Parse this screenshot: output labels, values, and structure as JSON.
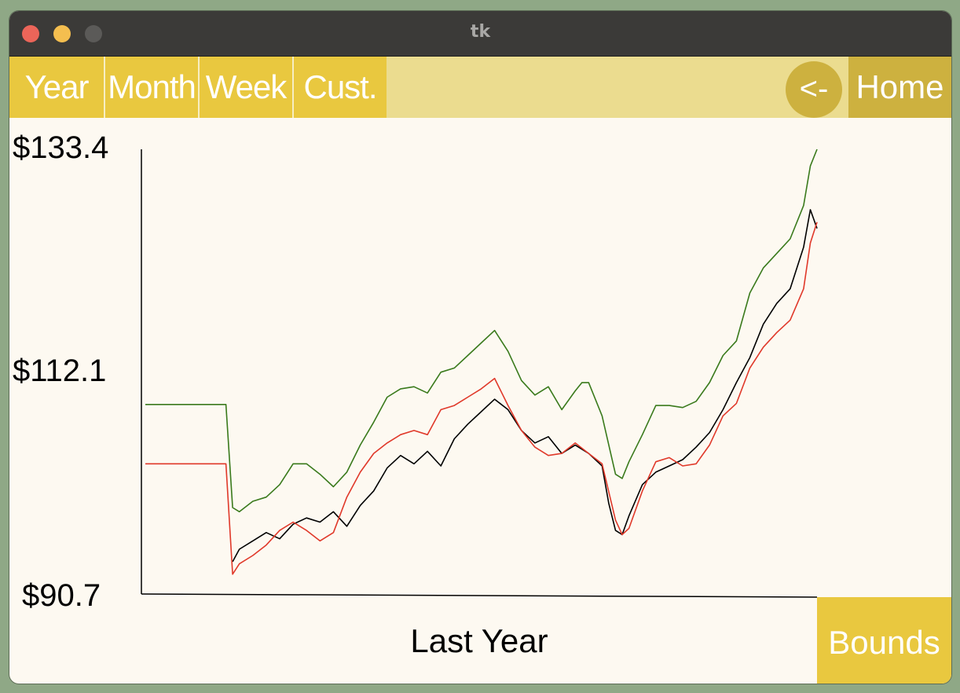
{
  "window": {
    "title": "tk"
  },
  "toolbar": {
    "buttons": [
      "Year",
      "Month",
      "Week",
      "Cust."
    ],
    "back_label": "<-",
    "home_label": "Home"
  },
  "footer": {
    "bounds_label": "Bounds"
  },
  "colors": {
    "accent": "#e9c83f",
    "accent_dark": "#cdb13f",
    "toolbar_bg": "#ebdc8f",
    "background": "#fdf9f1",
    "price_line": "#000000",
    "upper_bound": "#3a7a1c",
    "lower_bound": "#e0392a"
  },
  "chart_data": {
    "type": "line",
    "title": "",
    "xlabel": "Last Year",
    "ylabel": "",
    "ylim": [
      90.7,
      133.4
    ],
    "y_tick_labels": [
      "$133.4",
      "$112.1",
      "$90.7"
    ],
    "grid": false,
    "legend": "none",
    "series": [
      {
        "color": "#000000",
        "points": [
          [
            0.13,
            93.8
          ],
          [
            0.14,
            95.0
          ],
          [
            0.16,
            95.8
          ],
          [
            0.18,
            96.6
          ],
          [
            0.2,
            96.0
          ],
          [
            0.22,
            97.4
          ],
          [
            0.24,
            98.0
          ],
          [
            0.26,
            97.6
          ],
          [
            0.28,
            98.6
          ],
          [
            0.3,
            97.2
          ],
          [
            0.32,
            99.2
          ],
          [
            0.34,
            100.6
          ],
          [
            0.36,
            102.8
          ],
          [
            0.38,
            104.0
          ],
          [
            0.4,
            103.2
          ],
          [
            0.42,
            104.4
          ],
          [
            0.44,
            103.0
          ],
          [
            0.46,
            105.6
          ],
          [
            0.48,
            107.0
          ],
          [
            0.5,
            108.2
          ],
          [
            0.52,
            109.4
          ],
          [
            0.54,
            108.4
          ],
          [
            0.56,
            106.4
          ],
          [
            0.58,
            105.2
          ],
          [
            0.6,
            105.8
          ],
          [
            0.62,
            104.2
          ],
          [
            0.64,
            105.0
          ],
          [
            0.66,
            104.2
          ],
          [
            0.68,
            103.0
          ],
          [
            0.69,
            99.4
          ],
          [
            0.7,
            96.8
          ],
          [
            0.71,
            96.4
          ],
          [
            0.72,
            98.2
          ],
          [
            0.74,
            101.2
          ],
          [
            0.76,
            102.4
          ],
          [
            0.78,
            103.0
          ],
          [
            0.8,
            103.6
          ],
          [
            0.82,
            104.8
          ],
          [
            0.84,
            106.2
          ],
          [
            0.86,
            108.4
          ],
          [
            0.88,
            111.0
          ],
          [
            0.9,
            113.4
          ],
          [
            0.92,
            116.6
          ],
          [
            0.94,
            118.6
          ],
          [
            0.96,
            120.0
          ],
          [
            0.98,
            124.0
          ],
          [
            0.99,
            127.6
          ],
          [
            1.0,
            125.8
          ]
        ]
      },
      {
        "color": "#3a7a1c",
        "points": [
          [
            0.0,
            108.9
          ],
          [
            0.12,
            108.9
          ],
          [
            0.13,
            99.0
          ],
          [
            0.14,
            98.6
          ],
          [
            0.16,
            99.6
          ],
          [
            0.18,
            100.0
          ],
          [
            0.2,
            101.2
          ],
          [
            0.22,
            103.2
          ],
          [
            0.24,
            103.2
          ],
          [
            0.26,
            102.2
          ],
          [
            0.28,
            101.0
          ],
          [
            0.3,
            102.4
          ],
          [
            0.32,
            105.0
          ],
          [
            0.34,
            107.2
          ],
          [
            0.36,
            109.6
          ],
          [
            0.38,
            110.4
          ],
          [
            0.4,
            110.6
          ],
          [
            0.42,
            110.0
          ],
          [
            0.44,
            112.0
          ],
          [
            0.46,
            112.4
          ],
          [
            0.48,
            113.6
          ],
          [
            0.5,
            114.8
          ],
          [
            0.52,
            116.0
          ],
          [
            0.54,
            114.0
          ],
          [
            0.56,
            111.2
          ],
          [
            0.58,
            109.8
          ],
          [
            0.6,
            110.6
          ],
          [
            0.62,
            108.4
          ],
          [
            0.64,
            110.2
          ],
          [
            0.65,
            111.0
          ],
          [
            0.66,
            111.0
          ],
          [
            0.68,
            107.8
          ],
          [
            0.7,
            102.2
          ],
          [
            0.71,
            101.8
          ],
          [
            0.72,
            103.4
          ],
          [
            0.74,
            106.0
          ],
          [
            0.76,
            108.8
          ],
          [
            0.78,
            108.8
          ],
          [
            0.8,
            108.6
          ],
          [
            0.82,
            109.2
          ],
          [
            0.84,
            111.0
          ],
          [
            0.86,
            113.6
          ],
          [
            0.88,
            115.0
          ],
          [
            0.9,
            119.6
          ],
          [
            0.92,
            122.0
          ],
          [
            0.94,
            123.4
          ],
          [
            0.96,
            124.8
          ],
          [
            0.98,
            128.0
          ],
          [
            0.99,
            131.8
          ],
          [
            1.0,
            133.4
          ]
        ]
      },
      {
        "color": "#e0392a",
        "points": [
          [
            0.0,
            103.2
          ],
          [
            0.12,
            103.2
          ],
          [
            0.13,
            92.6
          ],
          [
            0.14,
            93.6
          ],
          [
            0.16,
            94.4
          ],
          [
            0.18,
            95.4
          ],
          [
            0.2,
            96.8
          ],
          [
            0.22,
            97.6
          ],
          [
            0.24,
            96.8
          ],
          [
            0.26,
            95.8
          ],
          [
            0.28,
            96.6
          ],
          [
            0.3,
            100.0
          ],
          [
            0.32,
            102.4
          ],
          [
            0.34,
            104.2
          ],
          [
            0.36,
            105.2
          ],
          [
            0.38,
            106.0
          ],
          [
            0.4,
            106.4
          ],
          [
            0.42,
            106.0
          ],
          [
            0.44,
            108.4
          ],
          [
            0.46,
            108.8
          ],
          [
            0.48,
            109.6
          ],
          [
            0.5,
            110.4
          ],
          [
            0.52,
            111.4
          ],
          [
            0.54,
            108.8
          ],
          [
            0.56,
            106.4
          ],
          [
            0.58,
            104.8
          ],
          [
            0.6,
            104.0
          ],
          [
            0.62,
            104.2
          ],
          [
            0.64,
            105.2
          ],
          [
            0.66,
            104.2
          ],
          [
            0.68,
            103.2
          ],
          [
            0.7,
            97.8
          ],
          [
            0.71,
            96.4
          ],
          [
            0.72,
            97.0
          ],
          [
            0.74,
            100.6
          ],
          [
            0.76,
            103.4
          ],
          [
            0.78,
            103.8
          ],
          [
            0.8,
            103.0
          ],
          [
            0.82,
            103.2
          ],
          [
            0.84,
            105.0
          ],
          [
            0.86,
            107.8
          ],
          [
            0.88,
            109.0
          ],
          [
            0.9,
            112.4
          ],
          [
            0.92,
            114.4
          ],
          [
            0.94,
            115.8
          ],
          [
            0.96,
            117.0
          ],
          [
            0.98,
            120.0
          ],
          [
            0.99,
            124.4
          ],
          [
            1.0,
            126.4
          ]
        ]
      }
    ]
  }
}
